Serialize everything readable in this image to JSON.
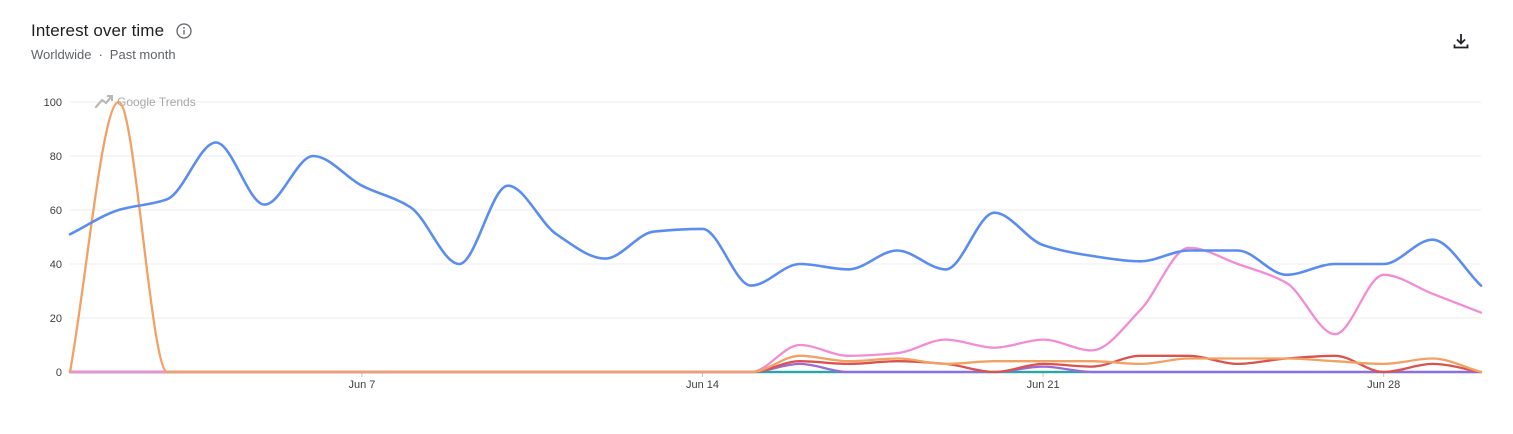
{
  "header": {
    "title": "Interest over time",
    "info_icon": "info-circle-icon",
    "region": "Worldwide",
    "separator": "·",
    "period": "Past month",
    "download_icon": "download-icon"
  },
  "watermark": {
    "text": "Google Trends",
    "icon": "trending-up-icon"
  },
  "chart_data": {
    "type": "line",
    "title": "Interest over time",
    "xlabel": "",
    "ylabel": "",
    "ylim": [
      0,
      100
    ],
    "yticks": [
      0,
      20,
      40,
      60,
      80,
      100
    ],
    "x": [
      "2025-05-31",
      "2025-06-01",
      "2025-06-02",
      "2025-06-03",
      "2025-06-04",
      "2025-06-05",
      "2025-06-06",
      "2025-06-07",
      "2025-06-08",
      "2025-06-09",
      "2025-06-10",
      "2025-06-11",
      "2025-06-12",
      "2025-06-13",
      "2025-06-14",
      "2025-06-15",
      "2025-06-16",
      "2025-06-17",
      "2025-06-18",
      "2025-06-19",
      "2025-06-20",
      "2025-06-21",
      "2025-06-22",
      "2025-06-23",
      "2025-06-24",
      "2025-06-25",
      "2025-06-26",
      "2025-06-27",
      "2025-06-28",
      "2025-06-29"
    ],
    "xticks": [
      {
        "label": "Jun 7",
        "index": 6
      },
      {
        "label": "Jun 14",
        "index": 13
      },
      {
        "label": "Jun 21",
        "index": 20
      },
      {
        "label": "Jun 28",
        "index": 27
      }
    ],
    "grid": true,
    "series": [
      {
        "color": "#5b8def",
        "values": [
          51,
          60,
          64,
          85,
          62,
          80,
          69,
          61,
          40,
          69,
          51,
          42,
          52,
          53,
          32,
          40,
          38,
          45,
          38,
          59,
          47,
          43,
          41,
          45,
          45,
          36,
          40,
          40,
          49,
          32
        ]
      },
      {
        "color": "#f2a164",
        "values": [
          0,
          100,
          0,
          0,
          0,
          0,
          0,
          0,
          0,
          0,
          0,
          0,
          0,
          0,
          0,
          6,
          4,
          5,
          3,
          4,
          4,
          4,
          3,
          5,
          5,
          5,
          4,
          3,
          5,
          0
        ]
      },
      {
        "color": "#f28cd3",
        "values": [
          0,
          0,
          0,
          0,
          0,
          0,
          0,
          0,
          0,
          0,
          0,
          0,
          0,
          0,
          0,
          10,
          6,
          7,
          12,
          9,
          12,
          8,
          23,
          46,
          40,
          33,
          14,
          36,
          29,
          22
        ]
      },
      {
        "color": "#d9534f",
        "values": [
          0,
          0,
          0,
          0,
          0,
          0,
          0,
          0,
          0,
          0,
          0,
          0,
          0,
          0,
          0,
          4,
          3,
          4,
          3,
          0,
          3,
          2,
          6,
          6,
          3,
          5,
          6,
          0,
          3,
          0
        ]
      },
      {
        "color": "#9b6ad6",
        "values": [
          0,
          0,
          0,
          0,
          0,
          0,
          0,
          0,
          0,
          0,
          0,
          0,
          0,
          0,
          0,
          3,
          0,
          0,
          0,
          0,
          2,
          0,
          0,
          0,
          0,
          0,
          0,
          0,
          0,
          0
        ]
      },
      {
        "color": "#2aa6a6",
        "values": [
          0,
          0,
          0,
          0,
          0,
          0,
          0,
          0,
          0,
          0,
          0,
          0,
          0,
          0,
          0,
          0,
          0,
          0,
          0,
          0,
          0,
          0,
          0,
          0,
          0,
          0,
          0,
          0,
          0,
          0
        ]
      },
      {
        "color": "#4aa3df",
        "values": [
          0,
          0,
          0,
          0,
          0,
          0,
          0,
          0,
          0,
          0,
          0,
          0,
          0,
          0,
          0,
          0,
          0,
          0,
          0,
          0,
          0,
          0,
          0,
          0,
          0,
          0,
          0,
          0,
          0,
          0
        ]
      }
    ]
  }
}
